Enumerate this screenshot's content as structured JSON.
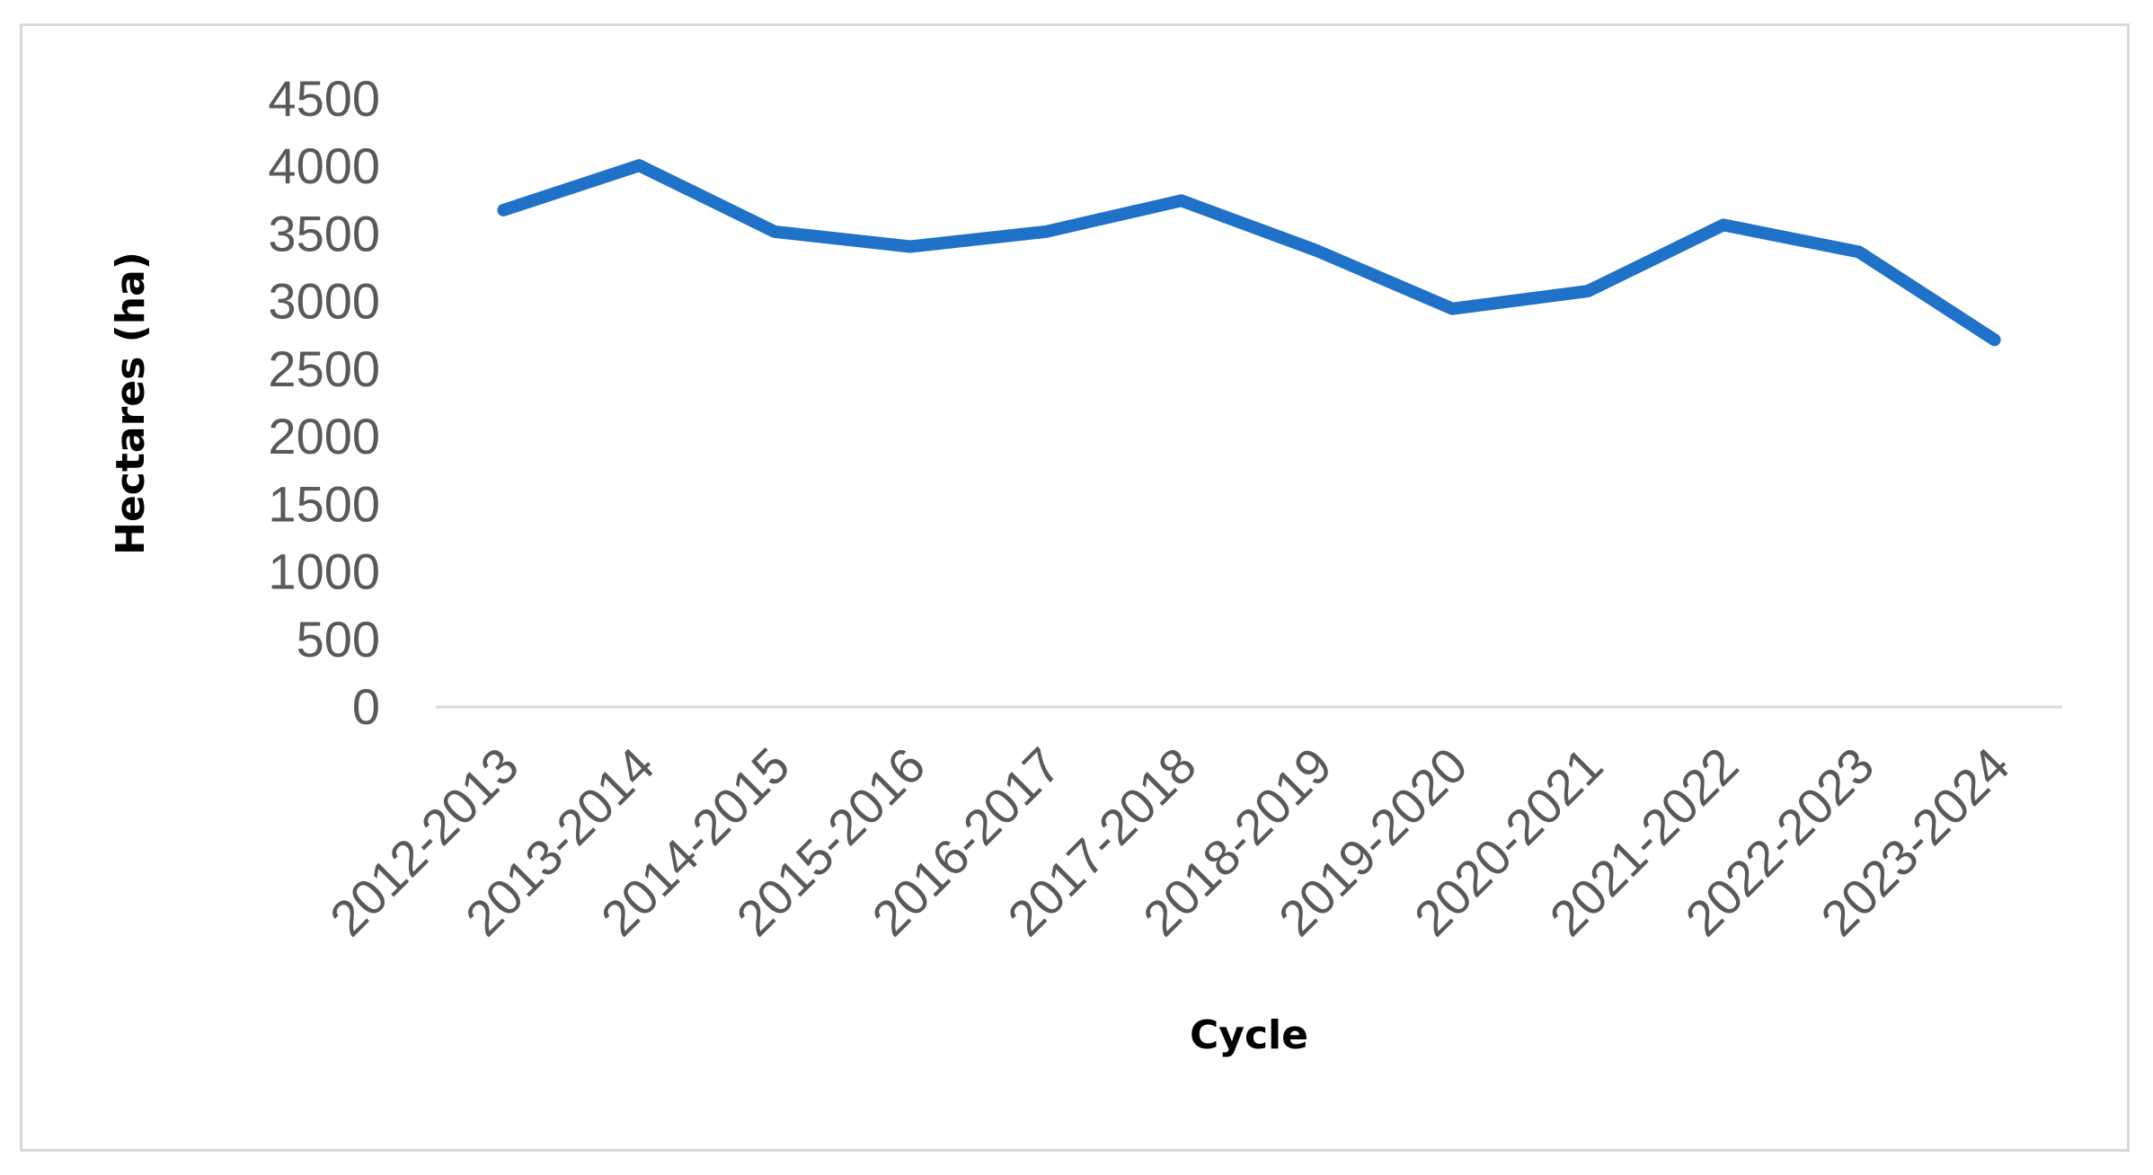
{
  "chart_data": {
    "type": "line",
    "title": "",
    "xlabel": "Cycle",
    "ylabel": "Hectares (ha)",
    "categories": [
      "2012-2013",
      "2013-2014",
      "2014-2015",
      "2015-2016",
      "2016-2017",
      "2017-2018",
      "2018-2019",
      "2019-2020",
      "2020-2021",
      "2021-2022",
      "2022-2023",
      "2023-2024"
    ],
    "series": [
      {
        "values": [
          3670,
          4000,
          3510,
          3400,
          3510,
          3740,
          3370,
          2940,
          3070,
          3560,
          3360,
          2710
        ],
        "color": "#1f72c8"
      }
    ],
    "yticks": [
      "0",
      "500",
      "1000",
      "1500",
      "2000",
      "2500",
      "3000",
      "3500",
      "4000",
      "4500"
    ],
    "ylim": [
      0,
      4500
    ],
    "grid": false,
    "legend": "none",
    "axis_color": "#d9d9d9",
    "label_color": "#595959"
  }
}
